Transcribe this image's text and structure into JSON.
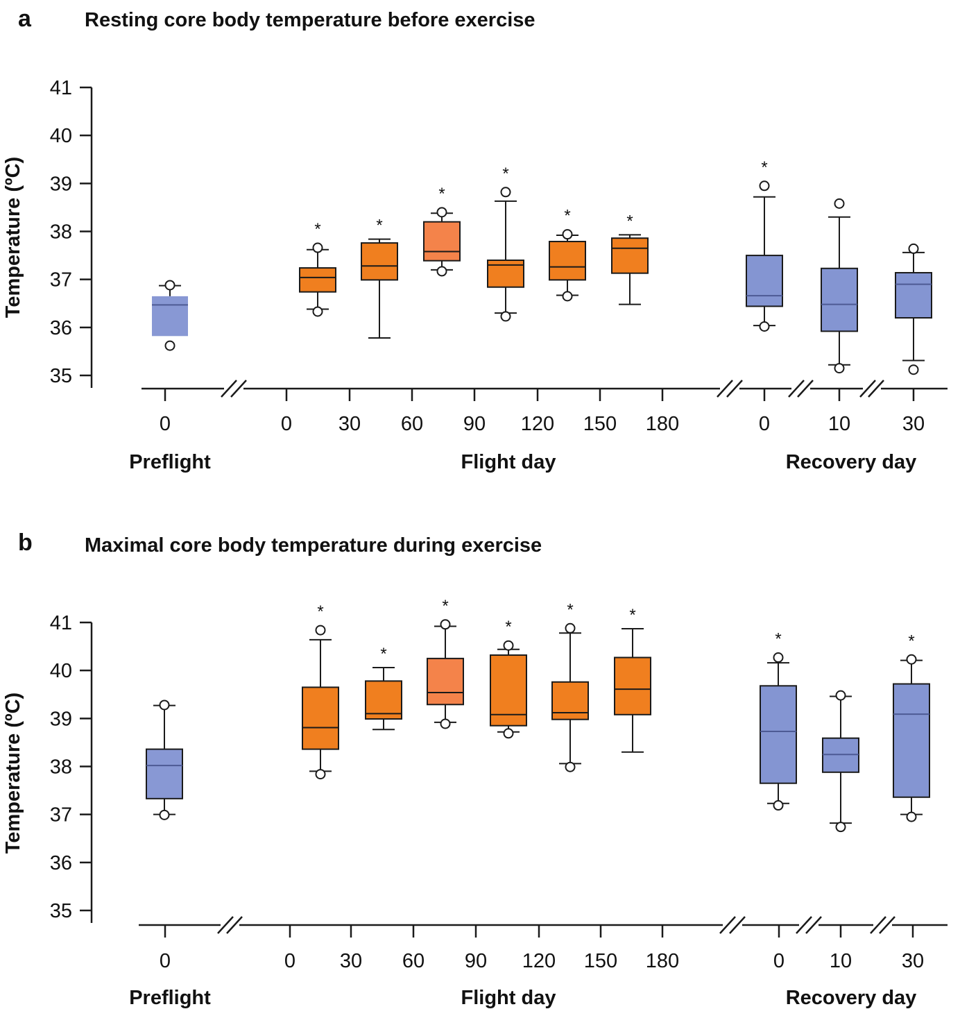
{
  "chart_data": [
    {
      "type": "box",
      "panel": "a",
      "title": "Resting core body temperature before exercise",
      "ylabel": "Temperature (ºC)",
      "ylim": [
        35,
        41
      ],
      "yticks": [
        "35",
        "36",
        "37",
        "38",
        "39",
        "40",
        "41"
      ],
      "groups": [
        {
          "label": "Preflight",
          "ticks": [
            "0"
          ]
        },
        {
          "label": "Flight day",
          "ticks": [
            "0",
            "30",
            "60",
            "90",
            "120",
            "150",
            "180"
          ]
        },
        {
          "label": "Recovery day",
          "ticks": [
            "0",
            "10",
            "30"
          ]
        }
      ],
      "boxes": [
        {
          "name": "Preflight 0",
          "period": "preflight",
          "x_tick": 0,
          "q1": 35.82,
          "median": 36.47,
          "q3": 36.65,
          "whisker_low": 35.82,
          "whisker_high": 36.87,
          "outliers": [
            35.62,
            36.88
          ],
          "significant": false
        },
        {
          "name": "Flight 0-30",
          "period": "flight",
          "x_tick": 15,
          "q1": 36.74,
          "median": 37.04,
          "q3": 37.24,
          "whisker_low": 36.38,
          "whisker_high": 37.62,
          "outliers": [
            36.33,
            37.66
          ],
          "significant": true
        },
        {
          "name": "Flight 30-60",
          "period": "flight",
          "x_tick": 45,
          "q1": 36.99,
          "median": 37.28,
          "q3": 37.76,
          "whisker_low": 35.78,
          "whisker_high": 37.84,
          "outliers": [],
          "significant": true
        },
        {
          "name": "Flight 60-90",
          "period": "flight-light",
          "x_tick": 75,
          "q1": 37.39,
          "median": 37.58,
          "q3": 38.2,
          "whisker_low": 37.2,
          "whisker_high": 38.38,
          "outliers": [
            37.17,
            38.4
          ],
          "significant": true
        },
        {
          "name": "Flight 90-120",
          "period": "flight",
          "x_tick": 105,
          "q1": 36.84,
          "median": 37.3,
          "q3": 37.4,
          "whisker_low": 36.3,
          "whisker_high": 38.63,
          "outliers": [
            36.23,
            38.82
          ],
          "significant": true
        },
        {
          "name": "Flight 120-150",
          "period": "flight",
          "x_tick": 135,
          "q1": 36.99,
          "median": 37.26,
          "q3": 37.79,
          "whisker_low": 36.67,
          "whisker_high": 37.92,
          "outliers": [
            36.65,
            37.94
          ],
          "significant": true
        },
        {
          "name": "Flight 150-180",
          "period": "flight",
          "x_tick": 165,
          "q1": 37.13,
          "median": 37.65,
          "q3": 37.86,
          "whisker_low": 36.48,
          "whisker_high": 37.93,
          "outliers": [],
          "significant": true
        },
        {
          "name": "Recovery 0",
          "period": "recovery",
          "x_tick": "0",
          "q1": 36.44,
          "median": 36.66,
          "q3": 37.5,
          "whisker_low": 36.04,
          "whisker_high": 38.72,
          "outliers": [
            36.02,
            38.95
          ],
          "significant": true
        },
        {
          "name": "Recovery 10",
          "period": "recovery",
          "x_tick": "10",
          "q1": 35.92,
          "median": 36.48,
          "q3": 37.23,
          "whisker_low": 35.22,
          "whisker_high": 38.3,
          "outliers": [
            35.15,
            38.58
          ],
          "significant": false
        },
        {
          "name": "Recovery 30",
          "period": "recovery",
          "x_tick": "30",
          "q1": 36.2,
          "median": 36.9,
          "q3": 37.14,
          "whisker_low": 35.31,
          "whisker_high": 37.56,
          "outliers": [
            35.12,
            37.64
          ],
          "significant": false
        }
      ]
    },
    {
      "type": "box",
      "panel": "b",
      "title": "Maximal core body temperature during exercise",
      "ylabel": "Temperature (ºC)",
      "ylim": [
        35,
        41
      ],
      "yticks": [
        "35",
        "36",
        "37",
        "38",
        "39",
        "40",
        "41"
      ],
      "groups": [
        {
          "label": "Preflight",
          "ticks": [
            "0"
          ]
        },
        {
          "label": "Flight day",
          "ticks": [
            "0",
            "30",
            "60",
            "90",
            "120",
            "150",
            "180"
          ]
        },
        {
          "label": "Recovery day",
          "ticks": [
            "0",
            "10",
            "30"
          ]
        }
      ],
      "boxes": [
        {
          "name": "Preflight 0",
          "period": "preflight",
          "x_tick": 0,
          "q1": 37.33,
          "median": 38.02,
          "q3": 38.36,
          "whisker_low": 37.0,
          "whisker_high": 39.27,
          "outliers": [
            36.99,
            39.28
          ],
          "significant": false
        },
        {
          "name": "Flight 0-30",
          "period": "flight",
          "x_tick": 15,
          "q1": 38.36,
          "median": 38.81,
          "q3": 39.65,
          "whisker_low": 37.9,
          "whisker_high": 40.64,
          "outliers": [
            37.84,
            40.84
          ],
          "significant": true
        },
        {
          "name": "Flight 30-60",
          "period": "flight",
          "x_tick": 45,
          "q1": 38.99,
          "median": 39.1,
          "q3": 39.78,
          "whisker_low": 38.77,
          "whisker_high": 40.06,
          "outliers": [],
          "significant": true
        },
        {
          "name": "Flight 60-90",
          "period": "flight-light",
          "x_tick": 75,
          "q1": 39.29,
          "median": 39.54,
          "q3": 40.25,
          "whisker_low": 38.92,
          "whisker_high": 40.92,
          "outliers": [
            38.89,
            40.96
          ],
          "significant": true
        },
        {
          "name": "Flight 90-120",
          "period": "flight",
          "x_tick": 105,
          "q1": 38.85,
          "median": 39.08,
          "q3": 40.32,
          "whisker_low": 38.72,
          "whisker_high": 40.44,
          "outliers": [
            38.69,
            40.52
          ],
          "significant": true
        },
        {
          "name": "Flight 120-150",
          "period": "flight",
          "x_tick": 135,
          "q1": 38.98,
          "median": 39.12,
          "q3": 39.76,
          "whisker_low": 38.06,
          "whisker_high": 40.78,
          "outliers": [
            37.99,
            40.88
          ],
          "significant": true
        },
        {
          "name": "Flight 150-180",
          "period": "flight",
          "x_tick": 165,
          "q1": 39.08,
          "median": 39.61,
          "q3": 40.27,
          "whisker_low": 38.3,
          "whisker_high": 40.87,
          "outliers": [],
          "significant": true
        },
        {
          "name": "Recovery 0",
          "period": "recovery",
          "x_tick": "0",
          "q1": 37.65,
          "median": 38.73,
          "q3": 39.68,
          "whisker_low": 37.23,
          "whisker_high": 40.16,
          "outliers": [
            37.19,
            40.27
          ],
          "significant": true
        },
        {
          "name": "Recovery 10",
          "period": "recovery",
          "x_tick": "10",
          "q1": 37.88,
          "median": 38.25,
          "q3": 38.59,
          "whisker_low": 36.82,
          "whisker_high": 39.46,
          "outliers": [
            36.74,
            39.48
          ],
          "significant": false
        },
        {
          "name": "Recovery 30",
          "period": "recovery",
          "x_tick": "30",
          "q1": 37.36,
          "median": 39.09,
          "q3": 39.72,
          "whisker_low": 37.0,
          "whisker_high": 40.21,
          "outliers": [
            36.95,
            40.23
          ],
          "significant": true
        }
      ]
    }
  ],
  "colors": {
    "preflight": "#8898d4",
    "recovery": "#8495d2",
    "flight": "#f07f1f",
    "flight_light": "#f4834a",
    "stroke": "#1a1a1a",
    "median_recovery": "#4d5a94"
  },
  "significance_marker": "*"
}
